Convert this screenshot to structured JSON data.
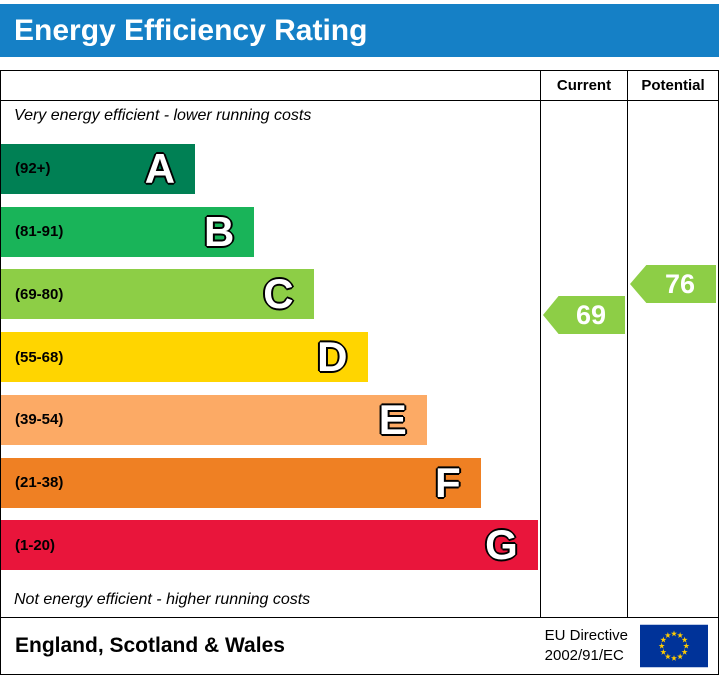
{
  "title": "Energy Efficiency Rating",
  "theme": {
    "header_bg": "#1580c6"
  },
  "columns": {
    "current_label": "Current",
    "potential_label": "Potential"
  },
  "notes": {
    "top": "Very energy efficient - lower running costs",
    "bottom": "Not energy efficient - higher running costs"
  },
  "chart_data": {
    "type": "bar",
    "title": "Energy Efficiency Rating",
    "bands": [
      {
        "letter": "A",
        "range_label": "(92+)",
        "min": 92,
        "max": 100,
        "color": "#008054",
        "width_pct": 36
      },
      {
        "letter": "B",
        "range_label": "(81-91)",
        "min": 81,
        "max": 91,
        "color": "#19b459",
        "width_pct": 47
      },
      {
        "letter": "C",
        "range_label": "(69-80)",
        "min": 69,
        "max": 80,
        "color": "#8dce46",
        "width_pct": 58
      },
      {
        "letter": "D",
        "range_label": "(55-68)",
        "min": 55,
        "max": 68,
        "color": "#ffd500",
        "width_pct": 68
      },
      {
        "letter": "E",
        "range_label": "(39-54)",
        "min": 39,
        "max": 54,
        "color": "#fcaa65",
        "width_pct": 79
      },
      {
        "letter": "F",
        "range_label": "(21-38)",
        "min": 21,
        "max": 38,
        "color": "#ef8023",
        "width_pct": 89
      },
      {
        "letter": "G",
        "range_label": "(1-20)",
        "min": 1,
        "max": 20,
        "color": "#e9153b",
        "width_pct": 99.6
      }
    ],
    "current": {
      "value": 69,
      "band": "C",
      "color": "#8dce46"
    },
    "potential": {
      "value": 76,
      "band": "C",
      "color": "#8dce46"
    }
  },
  "footer": {
    "region": "England, Scotland & Wales",
    "directive_line1": "EU Directive",
    "directive_line2": "2002/91/EC",
    "flag": {
      "field_color": "#003399",
      "star_color": "#ffcc00"
    }
  }
}
